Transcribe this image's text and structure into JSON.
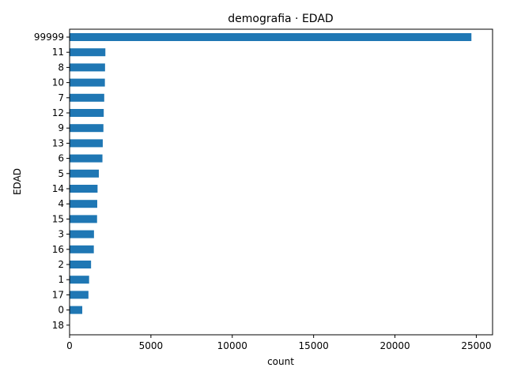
{
  "chart_data": {
    "type": "bar",
    "orientation": "horizontal",
    "title": "demografia · EDAD",
    "xlabel": "count",
    "ylabel": "EDAD",
    "categories": [
      "99999",
      "11",
      "8",
      "10",
      "7",
      "12",
      "9",
      "13",
      "6",
      "5",
      "14",
      "4",
      "15",
      "3",
      "16",
      "2",
      "1",
      "17",
      "0",
      "18"
    ],
    "values": [
      24700,
      2200,
      2180,
      2170,
      2130,
      2100,
      2080,
      2040,
      2020,
      1800,
      1720,
      1700,
      1690,
      1500,
      1490,
      1320,
      1200,
      1160,
      780,
      0
    ],
    "xlim": [
      0,
      26000
    ],
    "xticks": [
      0,
      5000,
      10000,
      15000,
      20000,
      25000
    ],
    "bar_color": "#1f77b4",
    "grid": false,
    "legend": false
  }
}
